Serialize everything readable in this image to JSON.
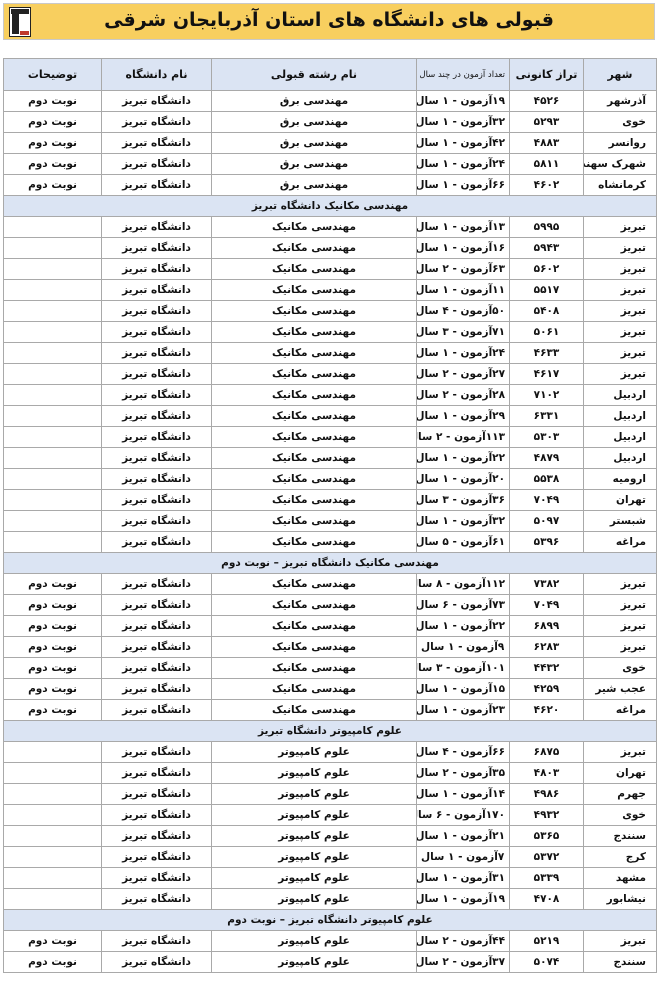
{
  "title": "قبولی های دانشگاه های استان آذربایجان شرقی",
  "header": {
    "city": "شهر",
    "score": "تراز کانونی",
    "count": "تعداد آزمون در چند سال",
    "major": "نام رشته قبولی",
    "university": "نام دانشگاه",
    "notes": "توضیحات"
  },
  "groups": [
    {
      "section": "",
      "rows": [
        [
          "آذرشهر",
          "۴۵۲۶",
          "۱۹آزمون - ۱ سال",
          "مهندسی برق",
          "دانشگاه تبریز",
          "نوبت دوم"
        ],
        [
          "خوی",
          "۵۲۹۳",
          "۳۲آزمون - ۱ سال",
          "مهندسی برق",
          "دانشگاه تبریز",
          "نوبت دوم"
        ],
        [
          "روانسر",
          "۴۸۸۳",
          "۴۲آزمون - ۱ سال",
          "مهندسی برق",
          "دانشگاه تبریز",
          "نوبت دوم"
        ],
        [
          "شهرک سهند",
          "۵۸۱۱",
          "۲۴آزمون - ۱ سال",
          "مهندسی برق",
          "دانشگاه تبریز",
          "نوبت دوم"
        ],
        [
          "کرمانشاه",
          "۴۶۰۲",
          "۶۶آزمون - ۱ سال",
          "مهندسی برق",
          "دانشگاه تبریز",
          "نوبت دوم"
        ]
      ]
    },
    {
      "section": "مهندسی مکانیک دانشگاه تبریز",
      "rows": [
        [
          "تبریز",
          "۵۹۹۵",
          "۱۳آزمون - ۱ سال",
          "مهندسی مکانیک",
          "دانشگاه تبریز",
          ""
        ],
        [
          "تبریز",
          "۵۹۴۳",
          "۱۶آزمون - ۱ سال",
          "مهندسی مکانیک",
          "دانشگاه تبریز",
          ""
        ],
        [
          "تبریز",
          "۵۶۰۲",
          "۶۳آزمون - ۲ سال",
          "مهندسی مکانیک",
          "دانشگاه تبریز",
          ""
        ],
        [
          "تبریز",
          "۵۵۱۷",
          "۱۱آزمون - ۱ سال",
          "مهندسی مکانیک",
          "دانشگاه تبریز",
          ""
        ],
        [
          "تبریز",
          "۵۴۰۸",
          "۵۰آزمون - ۴ سال",
          "مهندسی مکانیک",
          "دانشگاه تبریز",
          ""
        ],
        [
          "تبریز",
          "۵۰۶۱",
          "۷۱آزمون - ۳ سال",
          "مهندسی مکانیک",
          "دانشگاه تبریز",
          ""
        ],
        [
          "تبریز",
          "۴۶۳۳",
          "۲۴آزمون - ۱ سال",
          "مهندسی مکانیک",
          "دانشگاه تبریز",
          ""
        ],
        [
          "تبریز",
          "۴۶۱۷",
          "۲۷آزمون - ۲ سال",
          "مهندسی مکانیک",
          "دانشگاه تبریز",
          ""
        ],
        [
          "اردبیل",
          "۷۱۰۲",
          "۲۸آزمون - ۲ سال",
          "مهندسی مکانیک",
          "دانشگاه تبریز",
          ""
        ],
        [
          "اردبیل",
          "۶۳۳۱",
          "۲۹آزمون - ۱ سال",
          "مهندسی مکانیک",
          "دانشگاه تبریز",
          ""
        ],
        [
          "اردبیل",
          "۵۳۰۳",
          "۱۱۳آزمون - ۲ سال",
          "مهندسی مکانیک",
          "دانشگاه تبریز",
          ""
        ],
        [
          "اردبیل",
          "۴۸۷۹",
          "۲۲آزمون - ۱ سال",
          "مهندسی مکانیک",
          "دانشگاه تبریز",
          ""
        ],
        [
          "ارومیه",
          "۵۵۳۸",
          "۲۰آزمون - ۱ سال",
          "مهندسی مکانیک",
          "دانشگاه تبریز",
          ""
        ],
        [
          "تهران",
          "۷۰۴۹",
          "۳۶آزمون - ۳ سال",
          "مهندسی مکانیک",
          "دانشگاه تبریز",
          ""
        ],
        [
          "شبستر",
          "۵۰۹۷",
          "۳۲آزمون - ۱ سال",
          "مهندسی مکانیک",
          "دانشگاه تبریز",
          ""
        ],
        [
          "مراغه",
          "۵۳۹۶",
          "۶۱آزمون - ۵ سال",
          "مهندسی مکانیک",
          "دانشگاه تبریز",
          ""
        ]
      ]
    },
    {
      "section": "مهندسی مکانیک دانشگاه تبریز – نوبت دوم",
      "rows": [
        [
          "تبریز",
          "۷۳۸۲",
          "۱۱۲آزمون - ۸ سال",
          "مهندسی مکانیک",
          "دانشگاه تبریز",
          "نوبت دوم"
        ],
        [
          "تبریز",
          "۷۰۴۹",
          "۷۳آزمون - ۶ سال",
          "مهندسی مکانیک",
          "دانشگاه تبریز",
          "نوبت دوم"
        ],
        [
          "تبریز",
          "۶۸۹۹",
          "۲۲آزمون - ۱ سال",
          "مهندسی مکانیک",
          "دانشگاه تبریز",
          "نوبت دوم"
        ],
        [
          "تبریز",
          "۶۲۸۳",
          "۹آزمون - ۱ سال",
          "مهندسی مکانیک",
          "دانشگاه تبریز",
          "نوبت دوم"
        ],
        [
          "خوی",
          "۴۴۳۲",
          "۱۰۱آزمون - ۳ سال",
          "مهندسی مکانیک",
          "دانشگاه تبریز",
          "نوبت دوم"
        ],
        [
          "عجب شیر",
          "۴۲۵۹",
          "۱۵آزمون - ۱ سال",
          "مهندسی مکانیک",
          "دانشگاه تبریز",
          "نوبت دوم"
        ],
        [
          "مراغه",
          "۴۶۲۰",
          "۲۳آزمون - ۱ سال",
          "مهندسی مکانیک",
          "دانشگاه تبریز",
          "نوبت دوم"
        ]
      ]
    },
    {
      "section": "علوم کامپیوتر دانشگاه تبریز",
      "rows": [
        [
          "تبریز",
          "۶۸۷۵",
          "۶۶آزمون - ۴ سال",
          "علوم کامپیوتر",
          "دانشگاه تبریز",
          ""
        ],
        [
          "تهران",
          "۴۸۰۳",
          "۳۵آزمون - ۲ سال",
          "علوم کامپیوتر",
          "دانشگاه تبریز",
          ""
        ],
        [
          "جهرم",
          "۴۹۸۶",
          "۱۴آزمون - ۱ سال",
          "علوم کامپیوتر",
          "دانشگاه تبریز",
          ""
        ],
        [
          "خوی",
          "۴۹۳۲",
          "۱۷۰آزمون - ۶ سال",
          "علوم کامپیوتر",
          "دانشگاه تبریز",
          ""
        ],
        [
          "سنندج",
          "۵۳۶۵",
          "۲۱آزمون - ۱ سال",
          "علوم کامپیوتر",
          "دانشگاه تبریز",
          ""
        ],
        [
          "کرج",
          "۵۳۷۲",
          "۷آزمون - ۱ سال",
          "علوم کامپیوتر",
          "دانشگاه تبریز",
          ""
        ],
        [
          "مشهد",
          "۵۳۳۹",
          "۳۱آزمون - ۱ سال",
          "علوم کامپیوتر",
          "دانشگاه تبریز",
          ""
        ],
        [
          "نیشابور",
          "۴۷۰۸",
          "۱۹آزمون - ۱ سال",
          "علوم کامپیوتر",
          "دانشگاه تبریز",
          ""
        ]
      ]
    },
    {
      "section": "علوم کامپیوتر دانشگاه تبریز – نوبت دوم",
      "rows": [
        [
          "تبریز",
          "۵۲۱۹",
          "۴۴آزمون - ۲ سال",
          "علوم کامپیوتر",
          "دانشگاه تبریز",
          "نوبت دوم"
        ],
        [
          "سنندج",
          "۵۰۷۴",
          "۳۷آزمون - ۲ سال",
          "علوم کامپیوتر",
          "دانشگاه تبریز",
          "نوبت دوم"
        ]
      ]
    }
  ]
}
